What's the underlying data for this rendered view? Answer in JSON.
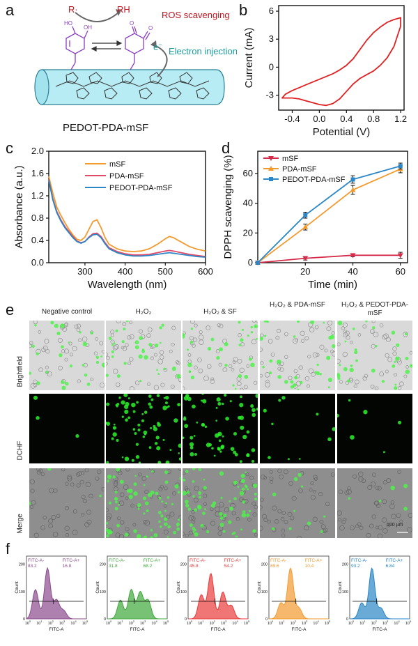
{
  "panel_labels": {
    "a": "a",
    "b": "b",
    "c": "c",
    "d": "d",
    "e": "e",
    "f": "f"
  },
  "panel_a": {
    "r_radical": "R·",
    "rh": "RH",
    "ros": "ROS scavenging",
    "eminus": "e",
    "eminus_sup": "−",
    "electron": "Electron injection",
    "caption": "PEDOT-PDA-mSF",
    "colors": {
      "ros": "#c0151f",
      "electron": "#1a9e9c",
      "molecule": "#8a3fc4",
      "fiber": "#b8ecf4"
    }
  },
  "chart_data": [
    {
      "id": "b",
      "type": "line",
      "title": "",
      "xlabel": "Potential (V)",
      "ylabel": "Current (mA)",
      "xlim": [
        -0.6,
        1.25
      ],
      "ylim": [
        -4.6,
        6.6
      ],
      "xticks": [
        "-0.4",
        "0.0",
        "0.4",
        "0.8",
        "1.2"
      ],
      "xtick_values": [
        -0.4,
        0.0,
        0.4,
        0.8,
        1.2
      ],
      "yticks": [
        "-3",
        "0",
        "3",
        "6"
      ],
      "ytick_values": [
        -3,
        0,
        3,
        6
      ],
      "color": "#e02020",
      "series": [
        {
          "values_x": [
            -0.55,
            -0.5,
            -0.4,
            -0.3,
            -0.2,
            -0.1,
            0.0,
            0.1,
            0.2,
            0.3,
            0.4,
            0.5,
            0.6,
            0.7,
            0.8,
            0.9,
            1.0,
            1.1,
            1.2,
            1.2,
            1.1,
            1.0,
            0.9,
            0.8,
            0.7,
            0.6,
            0.5,
            0.4,
            0.3,
            0.2,
            0.1,
            0.0,
            -0.1,
            -0.2,
            -0.3,
            -0.4,
            -0.5,
            -0.55
          ],
          "values_y": [
            -3.3,
            -2.9,
            -2.5,
            -2.2,
            -1.9,
            -1.6,
            -1.3,
            -1.0,
            -0.7,
            -0.3,
            0.2,
            0.9,
            1.9,
            2.9,
            3.7,
            4.3,
            4.8,
            5.1,
            5.3,
            4.4,
            2.2,
            1.0,
            0.2,
            -0.4,
            -0.8,
            -1.2,
            -1.8,
            -2.6,
            -3.4,
            -3.9,
            -4.1,
            -4.0,
            -3.8,
            -3.6,
            -3.4,
            -3.3,
            -3.3,
            -3.3
          ]
        }
      ]
    },
    {
      "id": "c",
      "type": "line",
      "title": "",
      "xlabel": "Wavelength (nm)",
      "ylabel": "Absorbance (a.u.)",
      "xlim": [
        210,
        600
      ],
      "ylim": [
        0,
        2.0
      ],
      "xticks": [
        "300",
        "400",
        "500",
        "600"
      ],
      "xtick_values": [
        300,
        400,
        500,
        600
      ],
      "yticks": [
        "0.0",
        "0.4",
        "0.8",
        "1.2",
        "1.6",
        "2.0"
      ],
      "ytick_values": [
        0,
        0.4,
        0.8,
        1.2,
        1.6,
        2.0
      ],
      "legend": "top-right",
      "series": [
        {
          "name": "mSF",
          "color": "#f29a2e",
          "x": [
            210,
            220,
            230,
            240,
            250,
            260,
            270,
            280,
            290,
            300,
            310,
            320,
            330,
            340,
            350,
            360,
            380,
            400,
            420,
            440,
            460,
            480,
            500,
            510,
            520,
            540,
            560,
            580,
            600
          ],
          "y": [
            1.55,
            1.25,
            1.0,
            0.85,
            0.72,
            0.6,
            0.5,
            0.42,
            0.4,
            0.46,
            0.6,
            0.74,
            0.77,
            0.63,
            0.45,
            0.33,
            0.25,
            0.21,
            0.2,
            0.21,
            0.25,
            0.33,
            0.43,
            0.47,
            0.45,
            0.37,
            0.29,
            0.24,
            0.21
          ]
        },
        {
          "name": "PDA-mSF",
          "color": "#e24a6a",
          "x": [
            210,
            220,
            230,
            240,
            250,
            260,
            270,
            280,
            290,
            300,
            310,
            320,
            330,
            340,
            350,
            360,
            380,
            400,
            420,
            440,
            460,
            480,
            500,
            510,
            520,
            540,
            560,
            580,
            600
          ],
          "y": [
            1.5,
            1.15,
            0.92,
            0.77,
            0.65,
            0.56,
            0.47,
            0.39,
            0.36,
            0.38,
            0.46,
            0.52,
            0.53,
            0.47,
            0.36,
            0.27,
            0.2,
            0.16,
            0.14,
            0.14,
            0.15,
            0.18,
            0.21,
            0.22,
            0.21,
            0.18,
            0.15,
            0.13,
            0.11
          ]
        },
        {
          "name": "PEDOT-PDA-mSF",
          "color": "#2a86c6",
          "x": [
            210,
            220,
            230,
            240,
            250,
            260,
            270,
            280,
            290,
            300,
            310,
            320,
            330,
            340,
            350,
            360,
            380,
            400,
            420,
            440,
            460,
            480,
            500,
            510,
            520,
            540,
            560,
            580,
            600
          ],
          "y": [
            1.48,
            1.13,
            0.9,
            0.75,
            0.63,
            0.54,
            0.45,
            0.38,
            0.35,
            0.38,
            0.45,
            0.5,
            0.51,
            0.45,
            0.34,
            0.25,
            0.18,
            0.14,
            0.12,
            0.12,
            0.13,
            0.15,
            0.17,
            0.18,
            0.17,
            0.15,
            0.13,
            0.11,
            0.1
          ]
        }
      ]
    },
    {
      "id": "d",
      "type": "line",
      "title": "",
      "xlabel": "Time (min)",
      "ylabel": "DPPH scavenging (%)",
      "xlim": [
        0,
        63
      ],
      "ylim": [
        0,
        75
      ],
      "xticks": [
        "20",
        "40",
        "60"
      ],
      "xtick_values": [
        20,
        40,
        60
      ],
      "yticks": [
        "0",
        "20",
        "40",
        "60"
      ],
      "ytick_values": [
        0,
        20,
        40,
        60
      ],
      "legend": "top-left",
      "series": [
        {
          "name": "mSF",
          "color": "#d62a4a",
          "marker": "triangle-down",
          "x": [
            0,
            20,
            40,
            60
          ],
          "y": [
            0,
            3,
            5,
            5
          ],
          "err": [
            0,
            1.2,
            1.0,
            2.0
          ]
        },
        {
          "name": "PDA-mSF",
          "color": "#f29a2e",
          "marker": "triangle-up",
          "x": [
            0,
            20,
            40,
            60
          ],
          "y": [
            0,
            24,
            49,
            63
          ],
          "err": [
            0,
            2,
            3,
            2.5
          ]
        },
        {
          "name": "PEDOT-PDA-mSF",
          "color": "#2a86c6",
          "marker": "square",
          "x": [
            0,
            20,
            40,
            60
          ],
          "y": [
            0,
            32,
            56,
            65
          ],
          "err": [
            0,
            2,
            2.5,
            2
          ]
        }
      ]
    },
    {
      "id": "f",
      "type": "area",
      "title": "",
      "xlabel": "FITC-A",
      "ylabel": "Count",
      "panels": [
        {
          "color": "#8b4a8e",
          "left_label": "FITC-A-",
          "left_value": "83.2",
          "right_label": "FITC-A+",
          "right_value": "16.8"
        },
        {
          "color": "#3fa83a",
          "left_label": "FITC-A-",
          "left_value": "31.8",
          "right_label": "FITC-A+",
          "right_value": "68.2"
        },
        {
          "color": "#ea3a3a",
          "left_label": "FITC-A-",
          "left_value": "45.8",
          "right_label": "FITC-A+",
          "right_value": "54.2"
        },
        {
          "color": "#f29a2e",
          "left_label": "FITC-A-",
          "left_value": "89.6",
          "right_label": "FITC-A+",
          "right_value": "10.4"
        },
        {
          "color": "#2a86c6",
          "left_label": "FITC-A-",
          "left_value": "93.2",
          "right_label": "FITC-A+",
          "right_value": "6.84"
        }
      ],
      "yticks": [
        "0",
        "100",
        "200"
      ],
      "xticks": [
        "10",
        "10",
        "10",
        "10",
        "10",
        "10"
      ],
      "xtick_exps": [
        "0",
        "1",
        "2",
        "3",
        "4",
        "5"
      ]
    }
  ],
  "panel_e": {
    "columns": [
      {
        "name": "Negative control"
      },
      {
        "name": "H₂O₂"
      },
      {
        "name": "H₂O₂ & SF"
      },
      {
        "name": "H₂O₂ & PDA-mSF"
      },
      {
        "name": "H₂O₂ & PEDOT-PDA-mSF"
      }
    ],
    "rows": [
      "Brightfield",
      "DCHF",
      "Merge"
    ],
    "scalebar_small": "100 µm",
    "scalebar": "100 µm"
  }
}
